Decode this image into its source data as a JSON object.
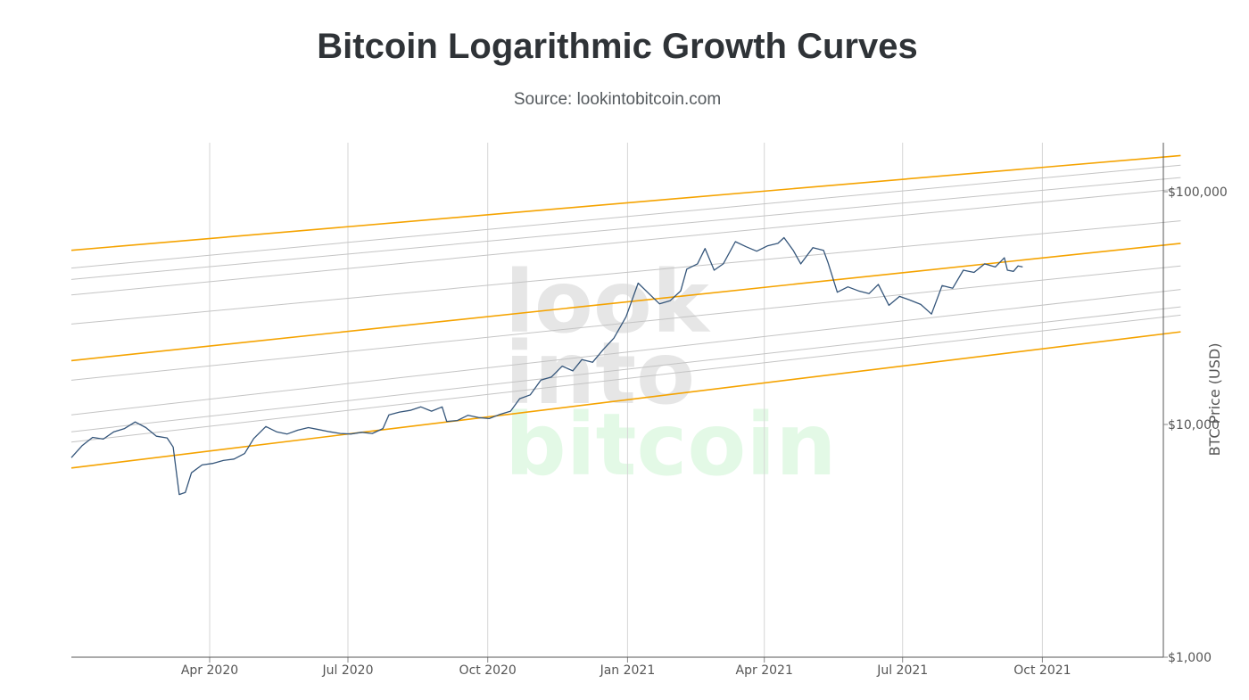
{
  "title": "Bitcoin Logarithmic Growth Curves",
  "subtitle": "Source: lookintobitcoin.com",
  "watermark": [
    "look",
    "into",
    "bitcoin"
  ],
  "colors": {
    "price": "#34557a",
    "band_outer": "#f5a300",
    "band_inner": "#c4c4c4",
    "grid": "#d6d6d6",
    "watermark_grey": "#e6e6e6",
    "watermark_green": "#e3f9e6"
  },
  "chart_data": {
    "type": "line",
    "title": "Bitcoin Logarithmic Growth Curves",
    "subtitle": "Source: lookintobitcoin.com",
    "ylabel": "BTC Price (USD)",
    "y_scale": "log",
    "y_ticks": [
      1000,
      10000,
      100000
    ],
    "y_tick_labels": [
      "$1,000",
      "$10,000",
      "$100,000"
    ],
    "ylim": [
      1000,
      150000
    ],
    "xlim": [
      "2020-01-01",
      "2021-12-31"
    ],
    "x_ticks": [
      "2020-04-01",
      "2020-07-01",
      "2020-10-01",
      "2021-01-01",
      "2021-04-01",
      "2021-07-01",
      "2021-10-01"
    ],
    "x_tick_labels": [
      "Apr 2020",
      "Jul 2020",
      "Oct 2020",
      "Jan 2021",
      "Apr 2021",
      "Jul 2021",
      "Oct 2021"
    ],
    "grid": true,
    "bands": [
      {
        "role": "outer",
        "points": [
          [
            "2020-01-01",
            56000
          ],
          [
            "2021-12-31",
            143000
          ]
        ]
      },
      {
        "role": "inner",
        "points": [
          [
            "2020-01-01",
            47000
          ],
          [
            "2021-12-31",
            130000
          ]
        ]
      },
      {
        "role": "inner",
        "points": [
          [
            "2020-01-01",
            42000
          ],
          [
            "2021-12-31",
            115000
          ]
        ]
      },
      {
        "role": "inner",
        "points": [
          [
            "2020-01-01",
            36000
          ],
          [
            "2021-12-31",
            103000
          ]
        ]
      },
      {
        "role": "inner",
        "points": [
          [
            "2020-01-01",
            27000
          ],
          [
            "2021-12-31",
            75000
          ]
        ]
      },
      {
        "role": "outer",
        "points": [
          [
            "2020-01-01",
            18800
          ],
          [
            "2021-12-31",
            60000
          ]
        ]
      },
      {
        "role": "inner",
        "points": [
          [
            "2020-01-01",
            15500
          ],
          [
            "2021-12-31",
            48000
          ]
        ]
      },
      {
        "role": "inner",
        "points": [
          [
            "2020-01-01",
            11000
          ],
          [
            "2021-12-31",
            38000
          ]
        ]
      },
      {
        "role": "inner",
        "points": [
          [
            "2020-01-01",
            9300
          ],
          [
            "2021-12-31",
            32000
          ]
        ]
      },
      {
        "role": "inner",
        "points": [
          [
            "2020-01-01",
            8400
          ],
          [
            "2021-12-31",
            29500
          ]
        ]
      },
      {
        "role": "outer",
        "points": [
          [
            "2020-01-01",
            6500
          ],
          [
            "2021-12-31",
            25000
          ]
        ]
      }
    ],
    "series": [
      {
        "name": "BTC Price",
        "points": [
          [
            "2020-01-01",
            7200
          ],
          [
            "2020-01-08",
            8100
          ],
          [
            "2020-01-15",
            8800
          ],
          [
            "2020-01-22",
            8650
          ],
          [
            "2020-01-29",
            9300
          ],
          [
            "2020-02-05",
            9600
          ],
          [
            "2020-02-12",
            10250
          ],
          [
            "2020-02-19",
            9700
          ],
          [
            "2020-02-26",
            8900
          ],
          [
            "2020-03-04",
            8750
          ],
          [
            "2020-03-08",
            8000
          ],
          [
            "2020-03-12",
            5000
          ],
          [
            "2020-03-16",
            5100
          ],
          [
            "2020-03-20",
            6200
          ],
          [
            "2020-03-27",
            6700
          ],
          [
            "2020-04-03",
            6800
          ],
          [
            "2020-04-10",
            7000
          ],
          [
            "2020-04-17",
            7100
          ],
          [
            "2020-04-24",
            7500
          ],
          [
            "2020-04-30",
            8700
          ],
          [
            "2020-05-08",
            9800
          ],
          [
            "2020-05-15",
            9300
          ],
          [
            "2020-05-22",
            9100
          ],
          [
            "2020-05-29",
            9450
          ],
          [
            "2020-06-05",
            9700
          ],
          [
            "2020-06-12",
            9500
          ],
          [
            "2020-06-19",
            9300
          ],
          [
            "2020-06-26",
            9150
          ],
          [
            "2020-07-03",
            9100
          ],
          [
            "2020-07-10",
            9250
          ],
          [
            "2020-07-17",
            9150
          ],
          [
            "2020-07-24",
            9600
          ],
          [
            "2020-07-28",
            11000
          ],
          [
            "2020-08-04",
            11300
          ],
          [
            "2020-08-11",
            11500
          ],
          [
            "2020-08-18",
            11900
          ],
          [
            "2020-08-25",
            11400
          ],
          [
            "2020-09-01",
            11900
          ],
          [
            "2020-09-04",
            10300
          ],
          [
            "2020-09-11",
            10400
          ],
          [
            "2020-09-18",
            10950
          ],
          [
            "2020-09-25",
            10700
          ],
          [
            "2020-10-02",
            10600
          ],
          [
            "2020-10-09",
            11050
          ],
          [
            "2020-10-16",
            11400
          ],
          [
            "2020-10-22",
            12900
          ],
          [
            "2020-10-29",
            13400
          ],
          [
            "2020-11-05",
            15500
          ],
          [
            "2020-11-12",
            16000
          ],
          [
            "2020-11-19",
            17800
          ],
          [
            "2020-11-26",
            17000
          ],
          [
            "2020-12-02",
            19000
          ],
          [
            "2020-12-09",
            18500
          ],
          [
            "2020-12-16",
            21000
          ],
          [
            "2020-12-23",
            23500
          ],
          [
            "2020-12-31",
            29000
          ],
          [
            "2021-01-08",
            40500
          ],
          [
            "2021-01-15",
            36500
          ],
          [
            "2021-01-22",
            33000
          ],
          [
            "2021-01-29",
            34000
          ],
          [
            "2021-02-05",
            37500
          ],
          [
            "2021-02-09",
            46500
          ],
          [
            "2021-02-16",
            49000
          ],
          [
            "2021-02-21",
            57000
          ],
          [
            "2021-02-27",
            46000
          ],
          [
            "2021-03-05",
            49000
          ],
          [
            "2021-03-13",
            61000
          ],
          [
            "2021-03-20",
            58000
          ],
          [
            "2021-03-27",
            55500
          ],
          [
            "2021-04-03",
            58500
          ],
          [
            "2021-04-10",
            60000
          ],
          [
            "2021-04-14",
            63500
          ],
          [
            "2021-04-20",
            56000
          ],
          [
            "2021-04-25",
            49000
          ],
          [
            "2021-05-03",
            57500
          ],
          [
            "2021-05-10",
            56000
          ],
          [
            "2021-05-13",
            49500
          ],
          [
            "2021-05-19",
            37000
          ],
          [
            "2021-05-26",
            39000
          ],
          [
            "2021-06-02",
            37500
          ],
          [
            "2021-06-09",
            36500
          ],
          [
            "2021-06-15",
            40000
          ],
          [
            "2021-06-22",
            32500
          ],
          [
            "2021-06-29",
            35500
          ],
          [
            "2021-07-06",
            34200
          ],
          [
            "2021-07-13",
            32800
          ],
          [
            "2021-07-20",
            29800
          ],
          [
            "2021-07-27",
            39500
          ],
          [
            "2021-08-03",
            38500
          ],
          [
            "2021-08-10",
            46000
          ],
          [
            "2021-08-17",
            45000
          ],
          [
            "2021-08-24",
            49000
          ],
          [
            "2021-08-31",
            47500
          ],
          [
            "2021-09-06",
            52000
          ],
          [
            "2021-09-08",
            46000
          ],
          [
            "2021-09-12",
            45500
          ],
          [
            "2021-09-15",
            48000
          ],
          [
            "2021-09-18",
            47500
          ]
        ]
      }
    ]
  }
}
